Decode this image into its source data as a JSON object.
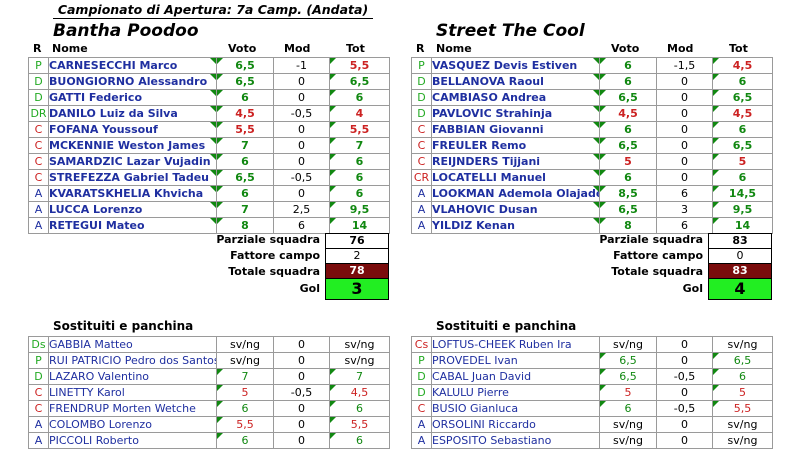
{
  "header_title": "Campionato di Apertura: 7a Camp. (Andata)",
  "colors": {
    "P": "#22aa22",
    "D": "#22aa22",
    "C": "#cc2222",
    "A": "#1f2fa0",
    "DR": "#22aa22",
    "CR": "#cc2222",
    "Ds": "#22aa22",
    "Cs": "#cc2222",
    "green_value": "#118811",
    "red_value": "#cc2222",
    "total_bg": "#7a0c0c",
    "gol_bg": "#22ee22"
  },
  "columns": {
    "r": "R",
    "name": "Nome",
    "voto": "Voto",
    "mod": "Mod",
    "tot": "Tot"
  },
  "labels": {
    "parziale": "Parziale squadra",
    "fattore": "Fattore campo",
    "totale": "Totale squadra",
    "gol": "Gol",
    "bench_title": "Sostituiti e panchina"
  },
  "home": {
    "name": "Bantha Poodoo",
    "players": [
      {
        "r": "P",
        "name": "CARNESECCHI Marco",
        "voto": "6,5",
        "mod": "-1",
        "tot": "5,5",
        "vc": "green",
        "tc": "red"
      },
      {
        "r": "D",
        "name": "BUONGIORNO Alessandro",
        "voto": "6,5",
        "mod": "0",
        "tot": "6,5",
        "vc": "green",
        "tc": "green"
      },
      {
        "r": "D",
        "name": "GATTI Federico",
        "voto": "6",
        "mod": "0",
        "tot": "6",
        "vc": "green",
        "tc": "green"
      },
      {
        "r": "DR",
        "name": "DANILO Luiz da Silva",
        "voto": "4,5",
        "mod": "-0,5",
        "tot": "4",
        "vc": "red",
        "tc": "red"
      },
      {
        "r": "C",
        "name": "FOFANA Youssouf",
        "voto": "5,5",
        "mod": "0",
        "tot": "5,5",
        "vc": "red",
        "tc": "red"
      },
      {
        "r": "C",
        "name": "MCKENNIE Weston James",
        "voto": "7",
        "mod": "0",
        "tot": "7",
        "vc": "green",
        "tc": "green"
      },
      {
        "r": "C",
        "name": "SAMARDZIC Lazar Vujadin",
        "voto": "6",
        "mod": "0",
        "tot": "6",
        "vc": "green",
        "tc": "green"
      },
      {
        "r": "C",
        "name": "STREFEZZA Gabriel Tadeu",
        "voto": "6,5",
        "mod": "-0,5",
        "tot": "6",
        "vc": "green",
        "tc": "green"
      },
      {
        "r": "A",
        "name": "KVARATSKHELIA Khvicha",
        "voto": "6",
        "mod": "0",
        "tot": "6",
        "vc": "green",
        "tc": "green"
      },
      {
        "r": "A",
        "name": "LUCCA Lorenzo",
        "voto": "7",
        "mod": "2,5",
        "tot": "9,5",
        "vc": "green",
        "tc": "green"
      },
      {
        "r": "A",
        "name": "RETEGUI Mateo",
        "voto": "8",
        "mod": "6",
        "tot": "14",
        "vc": "green",
        "tc": "green"
      }
    ],
    "parziale": "76",
    "fattore": "2",
    "totale": "78",
    "gol": "3",
    "bench": [
      {
        "r": "Ds",
        "name": "GABBIA Matteo",
        "voto": "sv/ng",
        "mod": "0",
        "tot": "sv/ng",
        "vc": "black",
        "tc": "black"
      },
      {
        "r": "P",
        "name": "RUI PATRICIO Pedro dos Santos",
        "voto": "sv/ng",
        "mod": "0",
        "tot": "sv/ng",
        "vc": "black",
        "tc": "black"
      },
      {
        "r": "D",
        "name": "LAZARO Valentino",
        "voto": "7",
        "mod": "0",
        "tot": "7",
        "vc": "green",
        "tc": "green"
      },
      {
        "r": "C",
        "name": "LINETTY Karol",
        "voto": "5",
        "mod": "-0,5",
        "tot": "4,5",
        "vc": "red",
        "tc": "red"
      },
      {
        "r": "C",
        "name": "FRENDRUP Morten Wetche",
        "voto": "6",
        "mod": "0",
        "tot": "6",
        "vc": "green",
        "tc": "green"
      },
      {
        "r": "A",
        "name": "COLOMBO Lorenzo",
        "voto": "5,5",
        "mod": "0",
        "tot": "5,5",
        "vc": "red",
        "tc": "red"
      },
      {
        "r": "A",
        "name": "PICCOLI Roberto",
        "voto": "6",
        "mod": "0",
        "tot": "6",
        "vc": "green",
        "tc": "green"
      }
    ]
  },
  "away": {
    "name": "Street The Cool",
    "players": [
      {
        "r": "P",
        "name": "VASQUEZ Devis Estiven",
        "voto": "6",
        "mod": "-1,5",
        "tot": "4,5",
        "vc": "green",
        "tc": "red"
      },
      {
        "r": "D",
        "name": "BELLANOVA Raoul",
        "voto": "6",
        "mod": "0",
        "tot": "6",
        "vc": "green",
        "tc": "green"
      },
      {
        "r": "D",
        "name": "CAMBIASO Andrea",
        "voto": "6,5",
        "mod": "0",
        "tot": "6,5",
        "vc": "green",
        "tc": "green"
      },
      {
        "r": "D",
        "name": "PAVLOVIC Strahinja",
        "voto": "4,5",
        "mod": "0",
        "tot": "4,5",
        "vc": "red",
        "tc": "red"
      },
      {
        "r": "C",
        "name": "FABBIAN Giovanni",
        "voto": "6",
        "mod": "0",
        "tot": "6",
        "vc": "green",
        "tc": "green"
      },
      {
        "r": "C",
        "name": "FREULER Remo",
        "voto": "6,5",
        "mod": "0",
        "tot": "6,5",
        "vc": "green",
        "tc": "green"
      },
      {
        "r": "C",
        "name": "REIJNDERS Tijjani",
        "voto": "5",
        "mod": "0",
        "tot": "5",
        "vc": "red",
        "tc": "red"
      },
      {
        "r": "CR",
        "name": "LOCATELLI Manuel",
        "voto": "6",
        "mod": "0",
        "tot": "6",
        "vc": "green",
        "tc": "green"
      },
      {
        "r": "A",
        "name": "LOOKMAN Ademola Olajade",
        "voto": "8,5",
        "mod": "6",
        "tot": "14,5",
        "vc": "green",
        "tc": "green"
      },
      {
        "r": "A",
        "name": "VLAHOVIC Dusan",
        "voto": "6,5",
        "mod": "3",
        "tot": "9,5",
        "vc": "green",
        "tc": "green"
      },
      {
        "r": "A",
        "name": "YILDIZ Kenan",
        "voto": "8",
        "mod": "6",
        "tot": "14",
        "vc": "green",
        "tc": "green"
      }
    ],
    "parziale": "83",
    "fattore": "0",
    "totale": "83",
    "gol": "4",
    "bench": [
      {
        "r": "Cs",
        "name": "LOFTUS-CHEEK Ruben Ira",
        "voto": "sv/ng",
        "mod": "0",
        "tot": "sv/ng",
        "vc": "black",
        "tc": "black"
      },
      {
        "r": "P",
        "name": "PROVEDEL Ivan",
        "voto": "6,5",
        "mod": "0",
        "tot": "6,5",
        "vc": "green",
        "tc": "green"
      },
      {
        "r": "D",
        "name": "CABAL Juan David",
        "voto": "6,5",
        "mod": "-0,5",
        "tot": "6",
        "vc": "green",
        "tc": "green"
      },
      {
        "r": "D",
        "name": "KALULU Pierre",
        "voto": "5",
        "mod": "0",
        "tot": "5",
        "vc": "red",
        "tc": "red"
      },
      {
        "r": "C",
        "name": "BUSIO Gianluca",
        "voto": "6",
        "mod": "-0,5",
        "tot": "5,5",
        "vc": "green",
        "tc": "red"
      },
      {
        "r": "A",
        "name": "ORSOLINI Riccardo",
        "voto": "sv/ng",
        "mod": "0",
        "tot": "sv/ng",
        "vc": "black",
        "tc": "black"
      },
      {
        "r": "A",
        "name": "ESPOSITO Sebastiano",
        "voto": "sv/ng",
        "mod": "0",
        "tot": "sv/ng",
        "vc": "black",
        "tc": "black"
      }
    ]
  }
}
